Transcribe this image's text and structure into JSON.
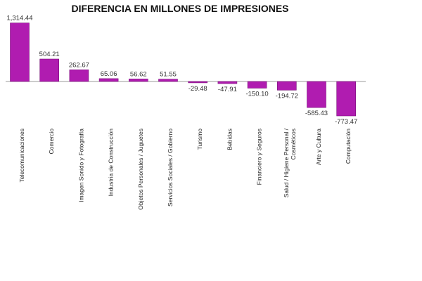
{
  "chart_data": {
    "type": "bar",
    "title": "DIFERENCIA EN MILLONES DE IMPRESIONES",
    "xlabel": "",
    "ylabel": "",
    "categories": [
      "Telecomunicaciones",
      "Comercio",
      "Imagen Sonido y Fotografía",
      "Industria de Construcción",
      "Objetos Personales / Juguetes",
      "Servicios Sociales / Gobierno",
      "Turismo",
      "Bebidas",
      "Financiero y Seguros",
      "Salud / Higiene Personal / Cosméticos",
      "Arte y Cultura",
      "Computación"
    ],
    "values": [
      1314.44,
      504.21,
      262.67,
      65.06,
      56.62,
      51.55,
      -29.48,
      -47.91,
      -150.1,
      -194.72,
      -585.43,
      -773.47
    ],
    "value_labels": [
      "1,314.44",
      "504.21",
      "262.67",
      "65.06",
      "56.62",
      "51.55",
      "-29.48",
      "-47.91",
      "-150.10",
      "-194.72",
      "-585.43",
      "-773.47"
    ],
    "bar_color": "#b01cb0",
    "bar_edge_color": "#7a0f7a",
    "grid": false,
    "legend": "none"
  }
}
